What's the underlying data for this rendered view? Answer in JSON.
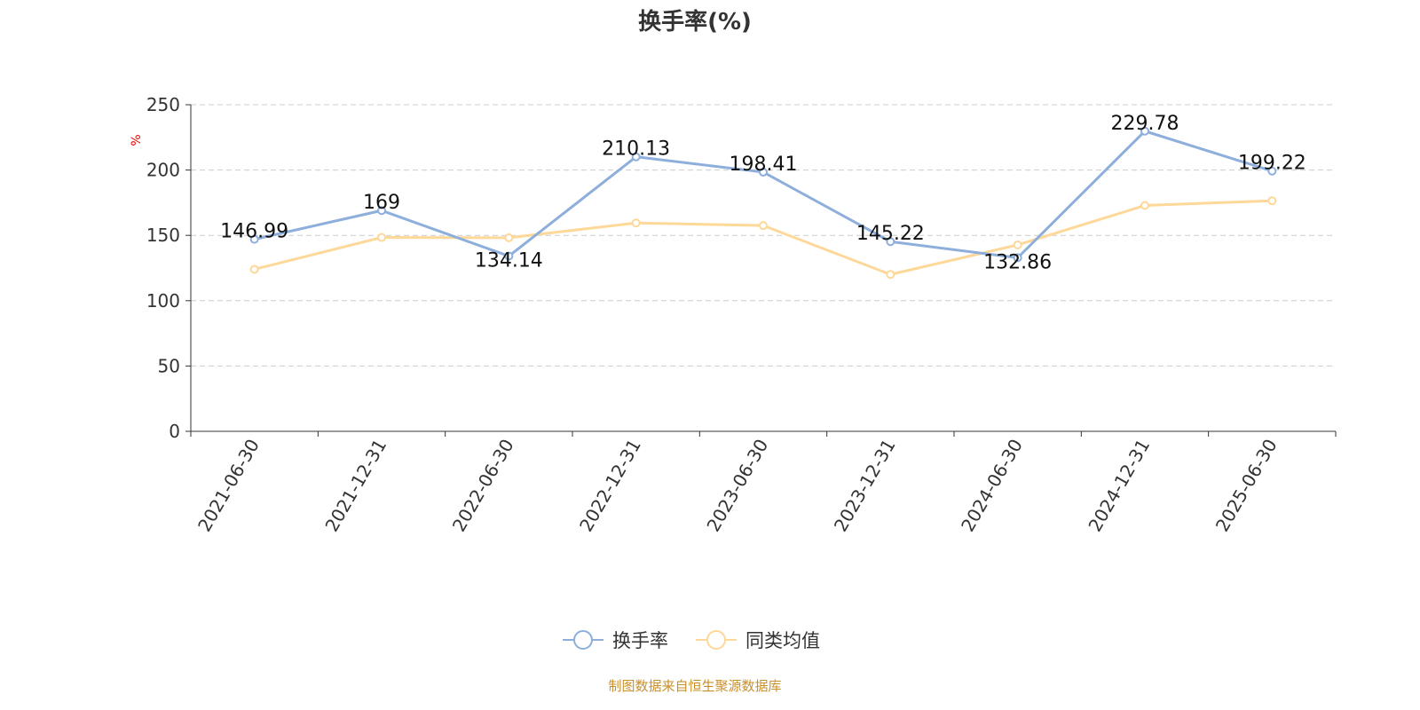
{
  "chart_data": {
    "type": "line",
    "title": "换手率(%)",
    "ylabel": "%",
    "ylim": [
      0,
      250
    ],
    "yticks": [
      0,
      50,
      100,
      150,
      200,
      250
    ],
    "grid": true,
    "legend_position": "bottom",
    "categories": [
      "2021-06-30",
      "2021-12-31",
      "2022-06-30",
      "2022-12-31",
      "2023-06-30",
      "2023-12-31",
      "2024-06-30",
      "2024-12-31",
      "2025-06-30"
    ],
    "series": [
      {
        "name": "换手率",
        "color": "#8eaedc",
        "values": [
          146.99,
          169,
          134.14,
          210.13,
          198.41,
          145.22,
          132.86,
          229.78,
          199.22
        ],
        "labels": [
          "146.99",
          "169",
          "134.14",
          "210.13",
          "198.41",
          "145.22",
          "132.86",
          "229.78",
          "199.22"
        ]
      },
      {
        "name": "同类均值",
        "color": "#fdd898",
        "values": [
          124,
          148.4,
          148.2,
          159.5,
          157.5,
          120.1,
          142.7,
          172.9,
          176.5
        ]
      }
    ]
  },
  "footer": "制图数据来自恒生聚源数据库"
}
